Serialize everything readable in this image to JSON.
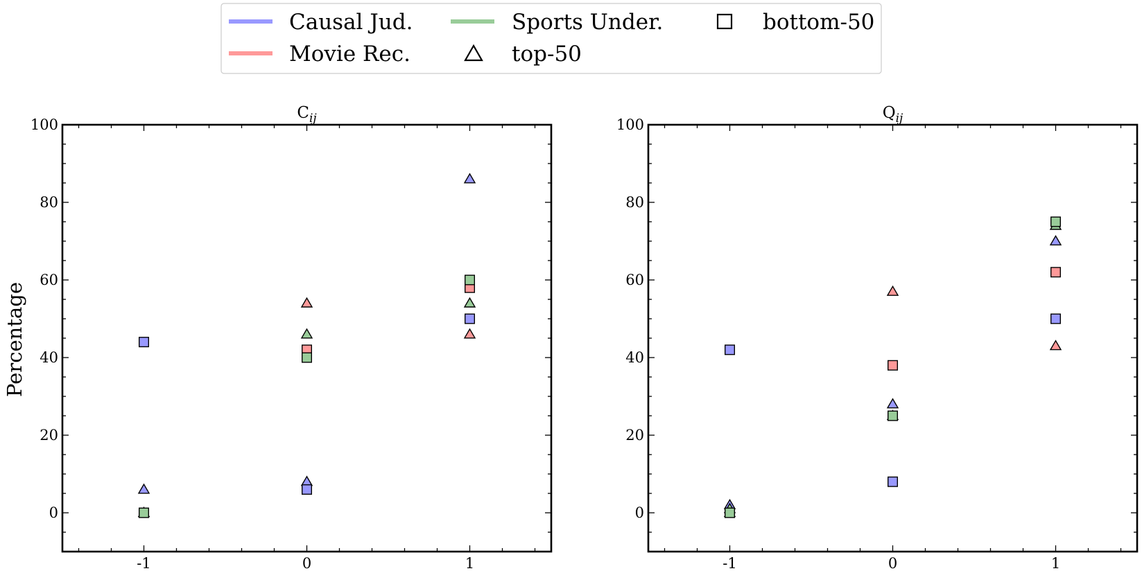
{
  "legend": {
    "items": [
      {
        "label": "Causal Jud.",
        "kind": "line",
        "color": "#9999ff"
      },
      {
        "label": "Movie Rec.",
        "kind": "line",
        "color": "#ff9999"
      },
      {
        "label": "Sports Under.",
        "kind": "line",
        "color": "#99cc99"
      },
      {
        "label": "top-50",
        "kind": "marker",
        "marker": "triangle"
      },
      {
        "label": "bottom-50",
        "kind": "marker",
        "marker": "square"
      }
    ]
  },
  "ylabel": "Percentage",
  "colors": {
    "Causal Jud.": "#9999ff",
    "Movie Rec.": "#ff9999",
    "Sports Under.": "#99cc99"
  },
  "chart_data": [
    {
      "type": "scatter",
      "title": "C",
      "title_subscript": "ij",
      "xlabel": "",
      "ylabel": "Percentage",
      "xlim": [
        -1.5,
        1.5
      ],
      "ylim": [
        -10,
        100
      ],
      "xticks": [
        -1,
        0,
        1
      ],
      "xtick_labels": [
        "-1",
        "0",
        "1"
      ],
      "yticks": [
        0,
        20,
        40,
        60,
        80,
        100
      ],
      "series": [
        {
          "name": "Causal Jud.",
          "group": "top-50",
          "marker": "triangle",
          "x": [
            -1,
            0,
            1
          ],
          "y": [
            6,
            8,
            86
          ]
        },
        {
          "name": "Causal Jud.",
          "group": "bottom-50",
          "marker": "square",
          "x": [
            -1,
            0,
            1
          ],
          "y": [
            44,
            6,
            50
          ]
        },
        {
          "name": "Movie Rec.",
          "group": "top-50",
          "marker": "triangle",
          "x": [
            -1,
            0,
            1
          ],
          "y": [
            0,
            54,
            46
          ]
        },
        {
          "name": "Movie Rec.",
          "group": "bottom-50",
          "marker": "square",
          "x": [
            -1,
            0,
            1
          ],
          "y": [
            0,
            42,
            58
          ]
        },
        {
          "name": "Sports Under.",
          "group": "top-50",
          "marker": "triangle",
          "x": [
            -1,
            0,
            1
          ],
          "y": [
            0,
            46,
            54
          ]
        },
        {
          "name": "Sports Under.",
          "group": "bottom-50",
          "marker": "square",
          "x": [
            -1,
            0,
            1
          ],
          "y": [
            0,
            40,
            60
          ]
        }
      ]
    },
    {
      "type": "scatter",
      "title": "Q",
      "title_subscript": "ij",
      "xlabel": "",
      "ylabel": "",
      "xlim": [
        -1.5,
        1.5
      ],
      "ylim": [
        -10,
        100
      ],
      "xticks": [
        -1,
        0,
        1
      ],
      "xtick_labels": [
        "-1",
        "0",
        "1"
      ],
      "yticks": [
        0,
        20,
        40,
        60,
        80,
        100
      ],
      "series": [
        {
          "name": "Causal Jud.",
          "group": "top-50",
          "marker": "triangle",
          "x": [
            -1,
            0,
            1
          ],
          "y": [
            2,
            28,
            70
          ]
        },
        {
          "name": "Causal Jud.",
          "group": "bottom-50",
          "marker": "square",
          "x": [
            -1,
            0,
            1
          ],
          "y": [
            42,
            8,
            50
          ]
        },
        {
          "name": "Movie Rec.",
          "group": "top-50",
          "marker": "triangle",
          "x": [
            -1,
            0,
            1
          ],
          "y": [
            0,
            57,
            43
          ]
        },
        {
          "name": "Movie Rec.",
          "group": "bottom-50",
          "marker": "square",
          "x": [
            -1,
            0,
            1
          ],
          "y": [
            0,
            38,
            62
          ]
        },
        {
          "name": "Sports Under.",
          "group": "top-50",
          "marker": "triangle",
          "x": [
            -1,
            0,
            1
          ],
          "y": [
            1,
            25,
            74
          ]
        },
        {
          "name": "Sports Under.",
          "group": "bottom-50",
          "marker": "square",
          "x": [
            -1,
            0,
            1
          ],
          "y": [
            0,
            25,
            75
          ]
        }
      ]
    }
  ]
}
